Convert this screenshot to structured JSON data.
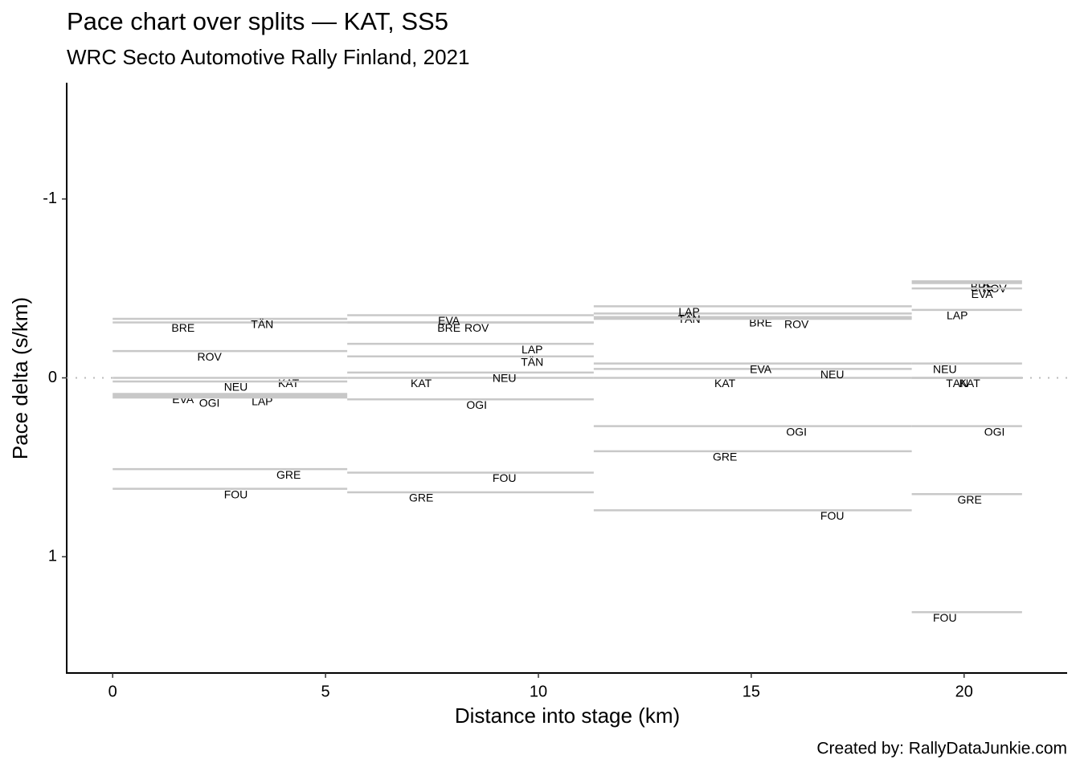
{
  "chart_data": {
    "type": "segments",
    "title": "Pace chart over splits — KAT, SS5",
    "subtitle": "WRC Secto Automotive Rally Finland, 2021",
    "xlabel": "Distance into stage (km)",
    "ylabel": "Pace delta (s/km)",
    "caption": "Created by: RallyDataJunkie.com",
    "splits": [
      0,
      5.51,
      11.3,
      18.77,
      21.36
    ],
    "color": "#c8c8c8",
    "reference_line": 0,
    "series": [
      {
        "name": "BRE",
        "values": [
          -0.31,
          -0.31,
          -0.34,
          -0.54
        ]
      },
      {
        "name": "TÄN",
        "values": [
          -0.33,
          -0.12,
          -0.36,
          0.0
        ]
      },
      {
        "name": "ROV",
        "values": [
          -0.15,
          -0.31,
          -0.33,
          -0.53
        ]
      },
      {
        "name": "KAT",
        "values": [
          0.0,
          0.0,
          0.0,
          0.0
        ]
      },
      {
        "name": "NEU",
        "values": [
          0.02,
          -0.03,
          -0.05,
          -0.08
        ]
      },
      {
        "name": "EVA",
        "values": [
          0.09,
          -0.35,
          -0.08,
          -0.5
        ]
      },
      {
        "name": "LAP",
        "values": [
          0.1,
          -0.19,
          -0.4,
          -0.38
        ]
      },
      {
        "name": "OGI",
        "values": [
          0.11,
          0.12,
          0.27,
          0.27
        ]
      },
      {
        "name": "GRE",
        "values": [
          0.51,
          0.64,
          0.41,
          0.65
        ]
      },
      {
        "name": "FOU",
        "values": [
          0.62,
          0.53,
          0.74,
          1.31
        ]
      }
    ],
    "xlim": [
      -1.08,
      22.42
    ],
    "xticks": [
      0,
      5,
      10,
      15,
      20
    ],
    "ylim": [
      -1.65,
      1.65
    ],
    "yticks": [
      -1,
      0,
      1
    ],
    "y_reversed": true
  }
}
